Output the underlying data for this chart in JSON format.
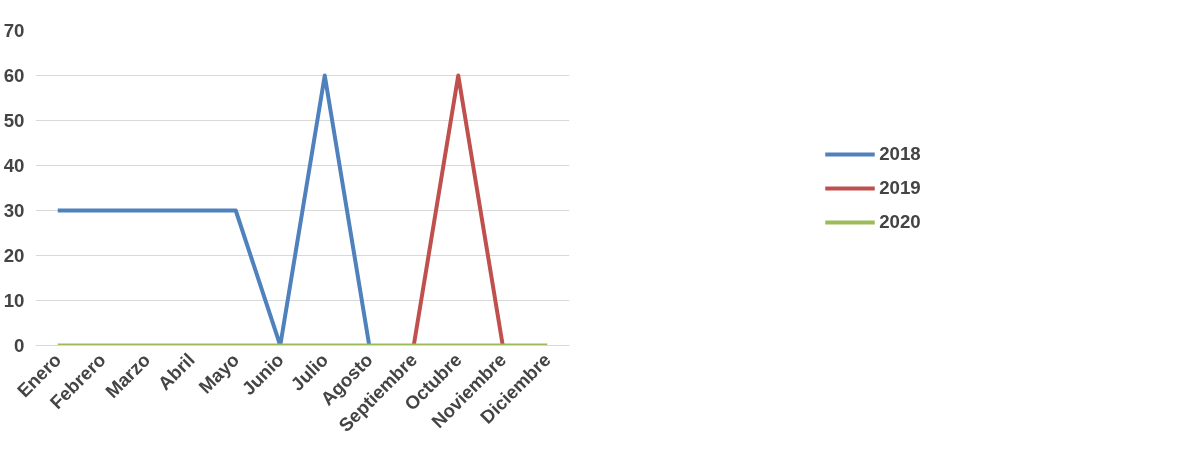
{
  "chart_data": {
    "type": "line",
    "categories": [
      "Enero",
      "Febrero",
      "Marzo",
      "Abril",
      "Mayo",
      "Junio",
      "Julio",
      "Agosto",
      "Septiembre",
      "Octubre",
      "Noviembre",
      "Diciembre"
    ],
    "series": [
      {
        "name": "2018",
        "color": "#4f81bd",
        "values": [
          30,
          30,
          30,
          30,
          30,
          0,
          60,
          0,
          null,
          null,
          null,
          null
        ]
      },
      {
        "name": "2019",
        "color": "#c0504d",
        "values": [
          null,
          null,
          null,
          null,
          null,
          null,
          null,
          null,
          0,
          60,
          0,
          null
        ]
      },
      {
        "name": "2020",
        "color": "#9bbb59",
        "values": [
          0,
          0,
          0,
          0,
          0,
          0,
          0,
          0,
          0,
          0,
          0,
          0
        ]
      }
    ],
    "ylim": [
      0,
      70
    ],
    "yticks": [
      0,
      10,
      20,
      30,
      40,
      50,
      60,
      70
    ],
    "grid": "y",
    "legend": "right",
    "marker": "none",
    "line_style": "solid"
  }
}
